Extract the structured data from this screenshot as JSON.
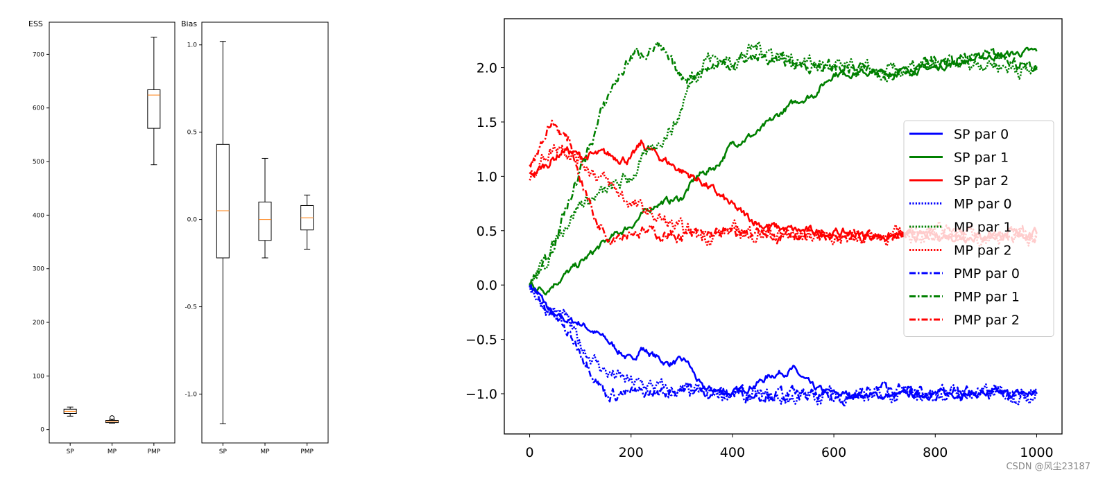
{
  "watermark": "CSDN @风尘23187",
  "colors": {
    "sp": "#0000ff",
    "green": "#008000",
    "red": "#ff0000",
    "median": "#ff7f0e"
  },
  "chart_data": [
    {
      "type": "box",
      "title": "ESS",
      "categories": [
        "SP",
        "MP",
        "PMP"
      ],
      "ylim": [
        -25,
        760
      ],
      "yticks": [
        0,
        100,
        200,
        300,
        400,
        500,
        600,
        700
      ],
      "boxes": [
        {
          "label": "SP",
          "whisker_low": 25,
          "q1": 30,
          "median": 34,
          "q3": 38,
          "whisker_high": 42,
          "outliers": []
        },
        {
          "label": "MP",
          "whisker_low": 12,
          "q1": 13,
          "median": 15,
          "q3": 17,
          "whisker_high": 19,
          "outliers": [
            22
          ]
        },
        {
          "label": "PMP",
          "whisker_low": 494,
          "q1": 562,
          "median": 624,
          "q3": 634,
          "whisker_high": 732,
          "outliers": []
        }
      ]
    },
    {
      "type": "box",
      "title": "Bias",
      "categories": [
        "SP",
        "MP",
        "PMP"
      ],
      "ylim": [
        -1.28,
        1.13
      ],
      "yticks": [
        1.0,
        0.5,
        0.0,
        -0.5,
        -1.0
      ],
      "ytick_labels": [
        "1.0",
        "0.5",
        "0.0",
        "-0.5",
        "-1.0"
      ],
      "boxes": [
        {
          "label": "SP",
          "whisker_low": -1.17,
          "q1": -0.22,
          "median": 0.05,
          "q3": 0.43,
          "whisker_high": 1.02,
          "outliers": []
        },
        {
          "label": "MP",
          "whisker_low": -0.22,
          "q1": -0.12,
          "median": 0.0,
          "q3": 0.1,
          "whisker_high": 0.35,
          "outliers": []
        },
        {
          "label": "PMP",
          "whisker_low": -0.17,
          "q1": -0.06,
          "median": 0.01,
          "q3": 0.08,
          "whisker_high": 0.14,
          "outliers": []
        }
      ]
    },
    {
      "type": "line",
      "xlim": [
        -50,
        1050
      ],
      "ylim": [
        -1.37,
        2.45
      ],
      "xticks": [
        0,
        200,
        400,
        600,
        800,
        1000
      ],
      "yticks": [
        2.0,
        1.5,
        1.0,
        0.5,
        0.0,
        -0.5,
        -1.0
      ],
      "ytick_labels": [
        "2.0",
        "1.5",
        "1.0",
        "0.5",
        "0.0",
        "−0.5",
        "−1.0"
      ],
      "legend_position": "center-right",
      "series": [
        {
          "name": "SP par 0",
          "color": "#0000ff",
          "style": "solid",
          "noise": 0.02,
          "points": [
            [
              0,
              0
            ],
            [
              20,
              -0.1
            ],
            [
              50,
              -0.3
            ],
            [
              100,
              -0.35
            ],
            [
              150,
              -0.5
            ],
            [
              200,
              -0.7
            ],
            [
              220,
              -0.58
            ],
            [
              270,
              -0.72
            ],
            [
              310,
              -0.7
            ],
            [
              340,
              -0.95
            ],
            [
              400,
              -1.0
            ],
            [
              450,
              -0.9
            ],
            [
              480,
              -0.82
            ],
            [
              520,
              -0.78
            ],
            [
              560,
              -0.95
            ],
            [
              600,
              -1.0
            ],
            [
              700,
              -1.02
            ],
            [
              800,
              -1.0
            ],
            [
              900,
              -1.0
            ],
            [
              1000,
              -1.0
            ]
          ]
        },
        {
          "name": "SP par 1",
          "color": "#008000",
          "style": "solid",
          "noise": 0.02,
          "points": [
            [
              0,
              0
            ],
            [
              30,
              -0.05
            ],
            [
              100,
              0.2
            ],
            [
              150,
              0.4
            ],
            [
              200,
              0.55
            ],
            [
              250,
              0.75
            ],
            [
              300,
              0.8
            ],
            [
              330,
              1.0
            ],
            [
              370,
              1.1
            ],
            [
              400,
              1.3
            ],
            [
              450,
              1.4
            ],
            [
              500,
              1.6
            ],
            [
              530,
              1.7
            ],
            [
              560,
              1.75
            ],
            [
              600,
              1.95
            ],
            [
              700,
              1.95
            ],
            [
              800,
              2.0
            ],
            [
              900,
              2.1
            ],
            [
              1000,
              2.15
            ]
          ]
        },
        {
          "name": "SP par 2",
          "color": "#ff0000",
          "style": "solid",
          "noise": 0.025,
          "points": [
            [
              0,
              1.0
            ],
            [
              30,
              1.1
            ],
            [
              70,
              1.25
            ],
            [
              100,
              1.18
            ],
            [
              150,
              1.2
            ],
            [
              200,
              1.15
            ],
            [
              220,
              1.3
            ],
            [
              250,
              1.2
            ],
            [
              300,
              1.05
            ],
            [
              340,
              0.95
            ],
            [
              380,
              0.8
            ],
            [
              420,
              0.65
            ],
            [
              460,
              0.55
            ],
            [
              520,
              0.5
            ],
            [
              600,
              0.48
            ],
            [
              700,
              0.45
            ],
            [
              800,
              0.45
            ],
            [
              900,
              0.45
            ],
            [
              1000,
              0.48
            ]
          ]
        },
        {
          "name": "MP par 0",
          "color": "#0000ff",
          "style": "dotted",
          "noise": 0.04,
          "points": [
            [
              0,
              0
            ],
            [
              30,
              -0.2
            ],
            [
              70,
              -0.3
            ],
            [
              100,
              -0.55
            ],
            [
              150,
              -0.8
            ],
            [
              200,
              -0.9
            ],
            [
              260,
              -0.95
            ],
            [
              320,
              -1.0
            ],
            [
              400,
              -1.0
            ],
            [
              500,
              -1.05
            ],
            [
              600,
              -1.0
            ],
            [
              700,
              -1.05
            ],
            [
              800,
              -1.0
            ],
            [
              900,
              -1.0
            ],
            [
              1000,
              -1.0
            ]
          ]
        },
        {
          "name": "MP par 1",
          "color": "#008000",
          "style": "dotted",
          "noise": 0.04,
          "points": [
            [
              0,
              0
            ],
            [
              30,
              0.2
            ],
            [
              60,
              0.5
            ],
            [
              100,
              0.75
            ],
            [
              150,
              0.85
            ],
            [
              200,
              1.0
            ],
            [
              250,
              1.3
            ],
            [
              290,
              1.5
            ],
            [
              320,
              1.9
            ],
            [
              350,
              2.1
            ],
            [
              400,
              2.05
            ],
            [
              450,
              2.2
            ],
            [
              500,
              2.1
            ],
            [
              600,
              2.0
            ],
            [
              700,
              1.95
            ],
            [
              800,
              2.0
            ],
            [
              900,
              2.05
            ],
            [
              1000,
              1.95
            ]
          ]
        },
        {
          "name": "MP par 2",
          "color": "#ff0000",
          "style": "dotted",
          "noise": 0.04,
          "points": [
            [
              0,
              1.0
            ],
            [
              30,
              1.2
            ],
            [
              60,
              1.3
            ],
            [
              100,
              1.15
            ],
            [
              150,
              0.95
            ],
            [
              200,
              0.75
            ],
            [
              260,
              0.6
            ],
            [
              300,
              0.5
            ],
            [
              350,
              0.45
            ],
            [
              400,
              0.5
            ],
            [
              500,
              0.45
            ],
            [
              600,
              0.45
            ],
            [
              700,
              0.45
            ],
            [
              800,
              0.48
            ],
            [
              900,
              0.45
            ],
            [
              1000,
              0.45
            ]
          ]
        },
        {
          "name": "PMP par 0",
          "color": "#0000ff",
          "style": "dashdot",
          "noise": 0.035,
          "points": [
            [
              0,
              0
            ],
            [
              30,
              -0.2
            ],
            [
              60,
              -0.35
            ],
            [
              100,
              -0.6
            ],
            [
              150,
              -1.0
            ],
            [
              200,
              -1.0
            ],
            [
              250,
              -1.0
            ],
            [
              300,
              -0.95
            ],
            [
              400,
              -1.0
            ],
            [
              500,
              -1.0
            ],
            [
              600,
              -1.05
            ],
            [
              700,
              -0.95
            ],
            [
              800,
              -1.0
            ],
            [
              900,
              -1.0
            ],
            [
              1000,
              -1.0
            ]
          ]
        },
        {
          "name": "PMP par 1",
          "color": "#008000",
          "style": "dashdot",
          "noise": 0.035,
          "points": [
            [
              0,
              0
            ],
            [
              40,
              0.3
            ],
            [
              80,
              0.8
            ],
            [
              120,
              1.3
            ],
            [
              160,
              1.8
            ],
            [
              200,
              2.1
            ],
            [
              250,
              2.2
            ],
            [
              300,
              1.9
            ],
            [
              350,
              2.0
            ],
            [
              400,
              2.05
            ],
            [
              450,
              2.1
            ],
            [
              500,
              2.05
            ],
            [
              600,
              2.0
            ],
            [
              700,
              1.95
            ],
            [
              800,
              2.05
            ],
            [
              900,
              2.1
            ],
            [
              1000,
              2.0
            ]
          ]
        },
        {
          "name": "PMP par 2",
          "color": "#ff0000",
          "style": "dashdot",
          "noise": 0.035,
          "points": [
            [
              0,
              1.1
            ],
            [
              20,
              1.3
            ],
            [
              45,
              1.5
            ],
            [
              80,
              1.3
            ],
            [
              100,
              1.0
            ],
            [
              130,
              0.6
            ],
            [
              160,
              0.45
            ],
            [
              200,
              0.5
            ],
            [
              300,
              0.45
            ],
            [
              400,
              0.48
            ],
            [
              500,
              0.45
            ],
            [
              600,
              0.45
            ],
            [
              700,
              0.45
            ],
            [
              800,
              0.48
            ],
            [
              900,
              0.45
            ],
            [
              1000,
              0.45
            ]
          ]
        }
      ]
    }
  ]
}
